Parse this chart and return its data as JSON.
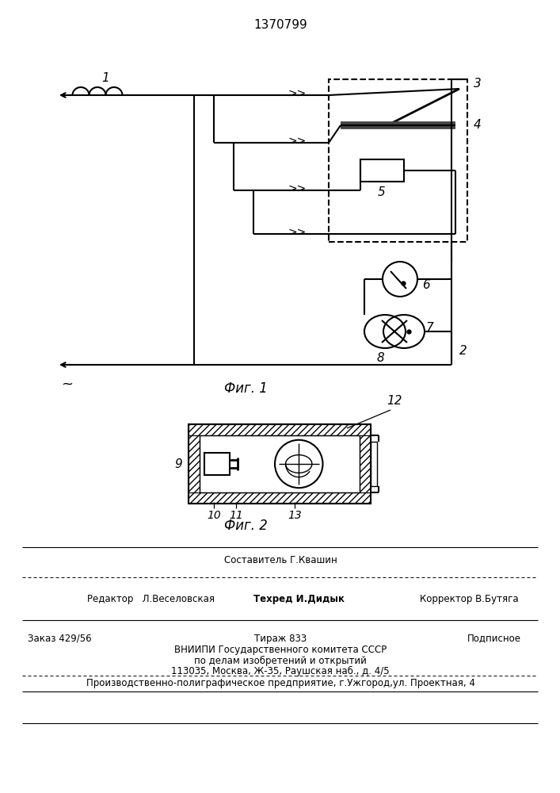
{
  "title": "1370799",
  "fig1_label": "Фиг. 1",
  "fig2_label": "Фиг. 2",
  "bg_color": "#ffffff",
  "lc": "#000000",
  "footer": {
    "line1_center": "Составитель Г.Квашин",
    "line2_left": "Редактор   Л.Веселовская",
    "line2_center": "Техред И.Дидык",
    "line2_right": "Корректор В.Бутяга",
    "line3_left": "Заказ 429/56",
    "line3_center": "Тираж 833",
    "line3_right": "Подписное",
    "line4": "ВНИИПИ Государственного комитета СССР",
    "line5": "по делам изобретений и открытий",
    "line6": "113035, Москва, Ж-35, Раушская наб., д. 4/5",
    "line7": "Производственно-полиграфическое предприятие, г.Ужгород,ул. Проектная, 4"
  }
}
